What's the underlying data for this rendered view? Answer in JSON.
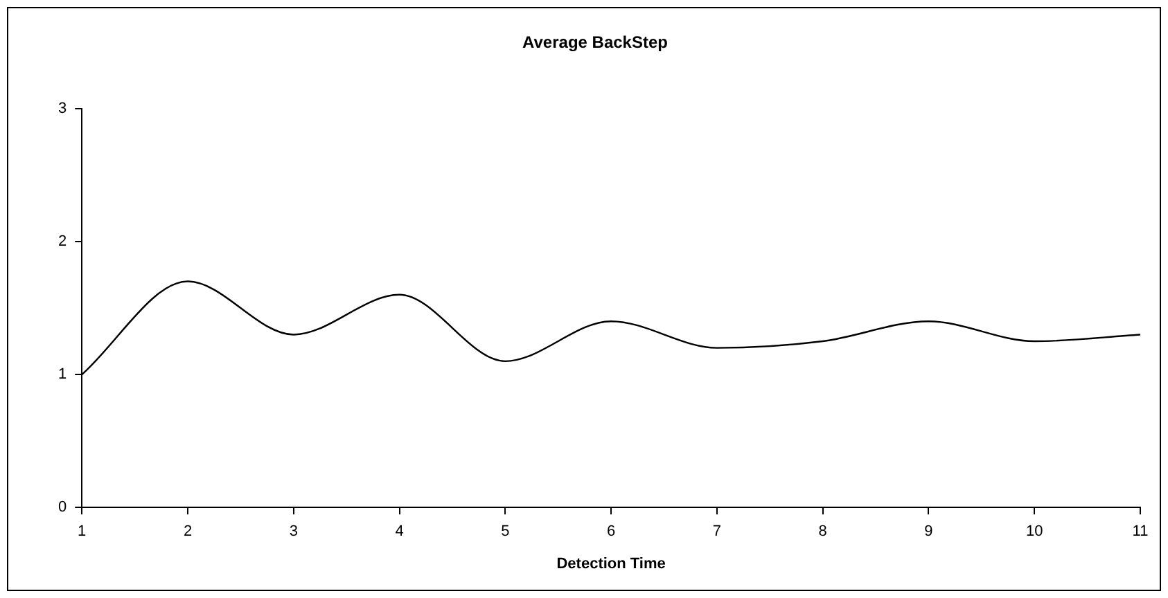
{
  "chart_data": {
    "type": "line",
    "title": "Average BackStep",
    "xlabel": "Detection Time",
    "x": [
      1,
      2,
      3,
      4,
      5,
      6,
      7,
      8,
      9,
      10,
      11
    ],
    "series": [
      {
        "color": "#000000",
        "values": [
          1.0,
          1.7,
          1.3,
          1.6,
          1.1,
          1.4,
          1.2,
          1.25,
          1.4,
          1.25,
          1.3
        ]
      }
    ],
    "xlim": [
      1,
      11
    ],
    "xticks": [
      1,
      2,
      3,
      4,
      5,
      6,
      7,
      8,
      9,
      10,
      11
    ],
    "ylim": [
      0,
      3
    ],
    "yticks": [
      0,
      1,
      2,
      3
    ],
    "grid": false,
    "legend": false,
    "marker": "none",
    "line_style": "solid"
  }
}
